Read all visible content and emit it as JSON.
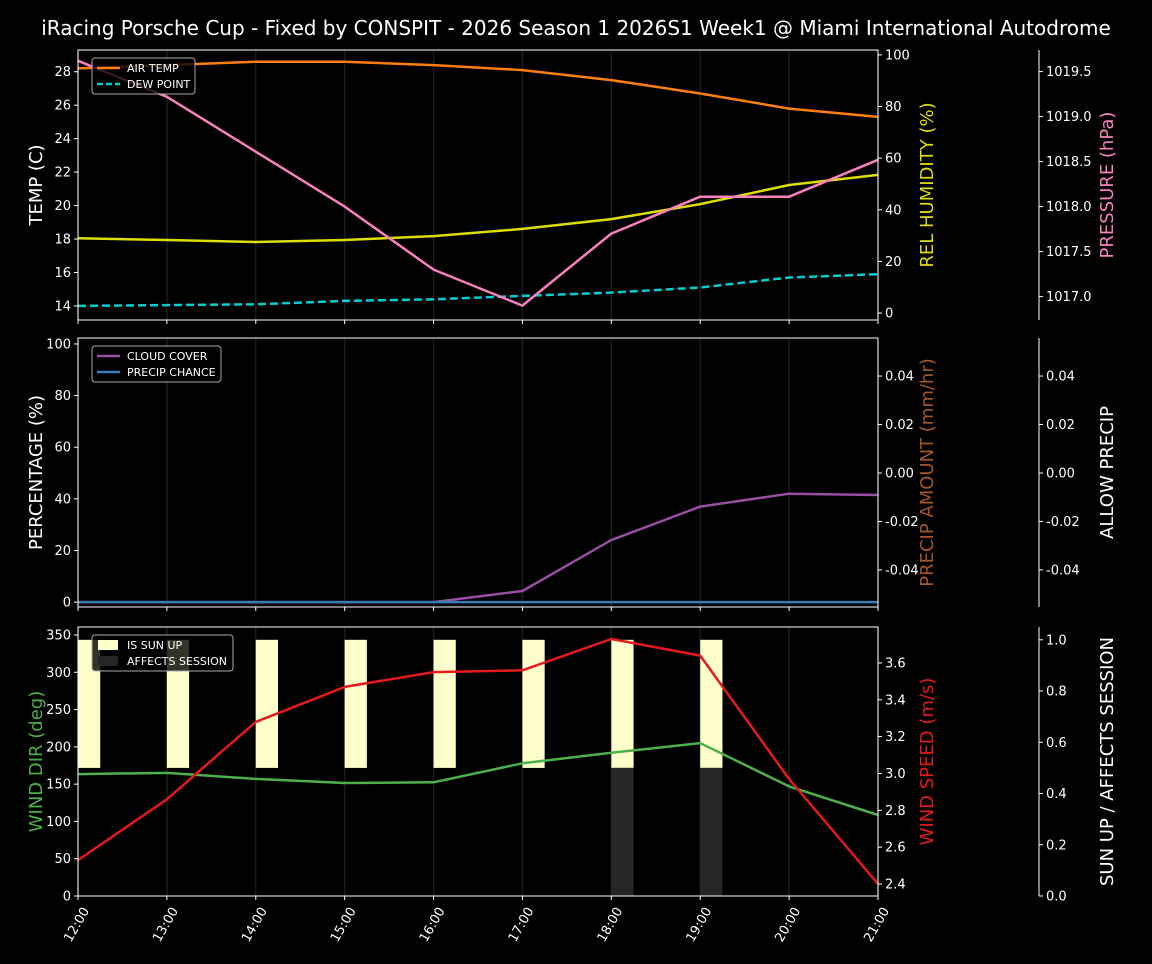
{
  "chart_data": {
    "type": "line",
    "title": "iRacing Porsche Cup - Fixed by CONSPIT - 2026 Season 1 2026S1 Week1 @ Miami International Autodrome",
    "x": [
      "12:00",
      "13:00",
      "14:00",
      "15:00",
      "16:00",
      "17:00",
      "18:00",
      "19:00",
      "20:00",
      "21:00"
    ],
    "panels": [
      {
        "axes": {
          "left": {
            "label": "TEMP (C)",
            "color": "#ffffff",
            "ylim": [
              13.16,
              29.3
            ],
            "ticks": [
              14,
              16,
              18,
              20,
              22,
              24,
              26,
              28
            ],
            "decimals": 0
          },
          "right": {
            "label": "REL HUMIDITY (%)",
            "color": "#dddd00",
            "ylim": [
              -2.7,
              101.9
            ],
            "ticks": [
              0,
              20,
              40,
              60,
              80,
              100
            ],
            "decimals": 0
          },
          "right2": {
            "label": "PRESSURE (hPa)",
            "color": "#f781bf",
            "ylim": [
              1016.74,
              1019.74
            ],
            "ticks": [
              1017.0,
              1017.5,
              1018.0,
              1018.5,
              1019.0,
              1019.5
            ],
            "decimals": 1
          }
        },
        "series": [
          {
            "name": "AIR TEMP",
            "axis": "left",
            "color": "#ff7f0e",
            "dash": false,
            "legend": true,
            "values": [
              28.2,
              28.4,
              28.6,
              28.6,
              28.4,
              28.1,
              27.5,
              26.7,
              25.8,
              25.3
            ]
          },
          {
            "name": "DEW POINT",
            "axis": "left",
            "color": "#00ced1",
            "dash": true,
            "legend": true,
            "values": [
              14.0,
              14.05,
              14.1,
              14.3,
              14.4,
              14.6,
              14.8,
              15.1,
              15.7,
              15.9
            ]
          },
          {
            "name": "REL HUMIDITY",
            "axis": "right",
            "color": "#dddd00",
            "dash": false,
            "legend": false,
            "values": [
              29.0,
              28.3,
              27.5,
              28.3,
              29.8,
              32.6,
              36.4,
              42.2,
              49.6,
              53.5
            ]
          },
          {
            "name": "PRESSURE",
            "axis": "right2",
            "color": "#f781bf",
            "dash": false,
            "legend": false,
            "values": [
              1019.62,
              1019.22,
              1018.61,
              1018.0,
              1017.3,
              1016.9,
              1017.7,
              1018.11,
              1018.11,
              1018.52
            ]
          }
        ]
      },
      {
        "axes": {
          "left": {
            "label": "PERCENTAGE (%)",
            "color": "#ffffff",
            "ylim": [
              -1.9,
              102.3
            ],
            "ticks": [
              0,
              20,
              40,
              60,
              80,
              100
            ],
            "decimals": 0
          },
          "right": {
            "label": "PRECIP AMOUNT (mm/hr)",
            "color": "#a65628",
            "ylim": [
              -0.0553,
              0.0557
            ],
            "ticks": [
              -0.04,
              -0.02,
              0.0,
              0.02,
              0.04
            ],
            "decimals": 2
          },
          "right2": {
            "label": "ALLOW PRECIP",
            "color": "#ffffff",
            "ylim": [
              -0.0553,
              0.0557
            ],
            "ticks": [
              -0.04,
              -0.02,
              0.0,
              0.02,
              0.04
            ],
            "decimals": 2
          }
        },
        "series": [
          {
            "name": "CLOUD COVER",
            "axis": "left",
            "color": "#984ea3",
            "dash": false,
            "legend": true,
            "values": [
              0,
              0,
              0,
              0,
              0,
              4.3,
              24,
              37,
              42,
              41.5
            ]
          },
          {
            "name": "PRECIP CHANCE",
            "axis": "left",
            "color": "#377eb8",
            "dash": false,
            "legend": true,
            "values": [
              0,
              0,
              0,
              0,
              0,
              0,
              0,
              0,
              0,
              0
            ]
          }
        ]
      },
      {
        "axes": {
          "left": {
            "label": "WIND DIR (deg)",
            "color": "#4daf4a",
            "ylim": [
              0,
              360.7
            ],
            "ticks": [
              0,
              50,
              100,
              150,
              200,
              250,
              300,
              350
            ],
            "decimals": 0
          },
          "right": {
            "label": "WIND SPEED (m/s)",
            "color": "#e41a1c",
            "ylim": [
              2.335,
              3.795
            ],
            "ticks": [
              2.4,
              2.6,
              2.8,
              3.0,
              3.2,
              3.4,
              3.6
            ],
            "decimals": 1
          },
          "right2": {
            "label": "SUN UP / AFFECTS SESSION",
            "color": "#ffffff",
            "ylim": [
              0,
              1.05
            ],
            "ticks": [
              0.0,
              0.2,
              0.4,
              0.6,
              0.8,
              1.0
            ],
            "decimals": 1
          }
        },
        "bars": [
          {
            "name": "IS SUN UP",
            "axis": "right2",
            "color": "#ffffcc",
            "bottom": 0.5,
            "height": 0.5,
            "values": [
              1,
              1,
              1,
              1,
              1,
              1,
              1,
              1,
              0,
              0
            ]
          },
          {
            "name": "AFFECTS SESSION",
            "axis": "right2",
            "color": "#262626",
            "bottom": 0,
            "height": 0.5,
            "values": [
              0,
              0,
              0,
              0,
              0,
              0,
              1,
              1,
              0,
              0
            ]
          }
        ],
        "series": [
          {
            "name": "WIND DIR",
            "axis": "left",
            "color": "#4daf4a",
            "dash": false,
            "legend": false,
            "values": [
              163.5,
              165,
              157,
              151.5,
              152.5,
              178,
              192,
              205,
              147,
              108.6
            ]
          },
          {
            "name": "WIND SPEED",
            "axis": "right",
            "color": "#e41a1c",
            "dash": false,
            "legend": false,
            "values": [
              2.53,
              2.86,
              3.28,
              3.47,
              3.55,
              3.56,
              3.73,
              3.64,
              2.97,
              2.4
            ]
          }
        ]
      }
    ]
  }
}
